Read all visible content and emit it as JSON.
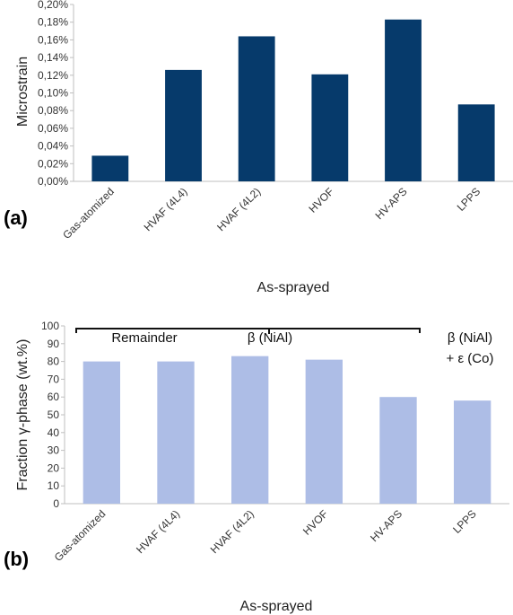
{
  "chart_data": [
    {
      "type": "bar",
      "panel_label": "(a)",
      "categories": [
        "Gas-atomized",
        "HVAF (4L4)",
        "HVAF (4L2)",
        "HVOF",
        "HV-APS",
        "LPPS"
      ],
      "values": [
        0.029,
        0.126,
        0.164,
        0.121,
        0.183,
        0.087
      ],
      "ylabel": "Microstrain",
      "xlabel": "As-sprayed",
      "ylim": [
        0,
        0.2
      ],
      "yticks": [
        "0,00%",
        "0,02%",
        "0,04%",
        "0,06%",
        "0,08%",
        "0,10%",
        "0,12%",
        "0,14%",
        "0,16%",
        "0,18%",
        "0,20%"
      ],
      "color": "#063a6b",
      "grid": false
    },
    {
      "type": "bar",
      "panel_label": "(b)",
      "categories": [
        "Gas-atomized",
        "HVAF (4L4)",
        "HVAF (4L2)",
        "HVOF",
        "HV-APS",
        "LPPS"
      ],
      "values": [
        80,
        80,
        83,
        81,
        60,
        58
      ],
      "ylabel": "Fraction γ-phase (wt.%)",
      "xlabel": "As-sprayed",
      "ylim": [
        0,
        100
      ],
      "yticks": [
        "0",
        "10",
        "20",
        "30",
        "40",
        "50",
        "60",
        "70",
        "80",
        "90",
        "100"
      ],
      "color": "#adbde6",
      "grid": false,
      "annotations": {
        "remainder": "Remainder",
        "beta_bracket": "β (NiAl)",
        "right_line1": "β (NiAl)",
        "right_line2": "+ ε (Co)"
      }
    }
  ]
}
